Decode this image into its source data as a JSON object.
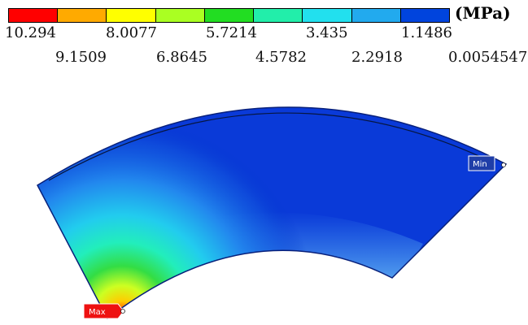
{
  "legend": {
    "unit": "(MPa)",
    "colors": [
      "#ff0000",
      "#ffaa00",
      "#ffff00",
      "#aaff22",
      "#22dd22",
      "#22eeaa",
      "#22e0ee",
      "#22aaee",
      "#0044dd"
    ],
    "ticks_top": [
      "10.294",
      "8.0077",
      "5.7214",
      "3.435",
      "1.1486"
    ],
    "ticks_bottom": [
      "9.1509",
      "6.8645",
      "4.5782",
      "2.2918",
      "0.0054547"
    ]
  },
  "markers": {
    "max_label": "Max",
    "min_label": "Min",
    "max_color": "#ff0000",
    "min_color": "#1f3ea8"
  }
}
